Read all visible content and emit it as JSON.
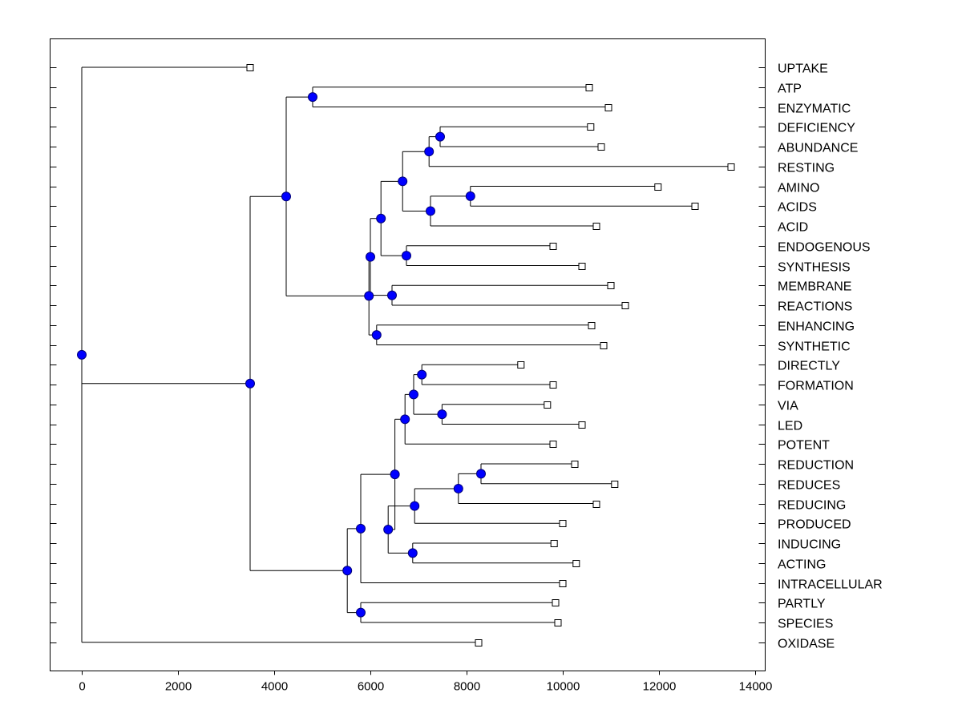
{
  "chart_data": {
    "type": "dendrogram",
    "title": "",
    "xlabel": "",
    "ylabel": "",
    "xlim": [
      -650,
      14250
    ],
    "x_ticks": [
      "0",
      "2000",
      "4000",
      "6000",
      "8000",
      "10000",
      "12000",
      "14000"
    ],
    "x_tick_values": [
      0,
      2000,
      4000,
      6000,
      8000,
      10000,
      12000,
      14000
    ],
    "leaves": [
      "UPTAKE",
      "ATP",
      "ENZYMATIC",
      "DEFICIENCY",
      "ABUNDANCE",
      "RESTING",
      "AMINO",
      "ACIDS",
      "ACID",
      "ENDOGENOUS",
      "SYNTHESIS",
      "MEMBRANE",
      "REACTIONS",
      "ENHANCING",
      "SYNTHETIC",
      "DIRECTLY",
      "FORMATION",
      "VIA",
      "LED",
      "POTENT",
      "REDUCTION",
      "REDUCES",
      "REDUCING",
      "PRODUCED",
      "INDUCING",
      "ACTING",
      "INTRACELLULAR",
      "PARTLY",
      "SPECIES",
      "OXIDASE"
    ],
    "leaf_values": [
      3500,
      10550,
      10950,
      10580,
      10800,
      13500,
      11980,
      12750,
      10700,
      9800,
      10400,
      11000,
      11300,
      10600,
      10850,
      9130,
      9800,
      9680,
      10400,
      9800,
      10250,
      11080,
      10700,
      10000,
      9820,
      10280,
      10000,
      9850,
      9900,
      8250
    ],
    "tree": {
      "h": 0,
      "c": [
        "UPTAKE",
        {
          "h": 3500,
          "c": [
            {
              "h": 4250,
              "c": [
                {
                  "h": 4800,
                  "c": [
                    "ATP",
                    "ENZYMATIC"
                  ]
                },
                {
                  "h": 5970,
                  "c": [
                    {
                      "h": 6000,
                      "c": [
                        {
                          "h": 6220,
                          "c": [
                            {
                              "h": 6670,
                              "c": [
                                {
                                  "h": 7220,
                                  "c": [
                                    {
                                      "h": 7450,
                                      "c": [
                                        "DEFICIENCY",
                                        "ABUNDANCE"
                                      ]
                                    },
                                    "RESTING"
                                  ]
                                },
                                {
                                  "h": 7250,
                                  "c": [
                                    {
                                      "h": 8080,
                                      "c": [
                                        "AMINO",
                                        "ACIDS"
                                      ]
                                    },
                                    "ACID"
                                  ]
                                }
                              ]
                            },
                            {
                              "h": 6750,
                              "c": [
                                "ENDOGENOUS",
                                "SYNTHESIS"
                              ]
                            }
                          ]
                        },
                        {
                          "h": 6450,
                          "c": [
                            "MEMBRANE",
                            "REACTIONS"
                          ]
                        }
                      ]
                    },
                    {
                      "h": 6130,
                      "c": [
                        "ENHANCING",
                        "SYNTHETIC"
                      ]
                    }
                  ]
                }
              ]
            },
            {
              "h": 5520,
              "c": [
                {
                  "h": 5800,
                  "c": [
                    {
                      "h": 6510,
                      "c": [
                        {
                          "h": 6720,
                          "c": [
                            {
                              "h": 6900,
                              "c": [
                                {
                                  "h": 7070,
                                  "c": [
                                    "DIRECTLY",
                                    "FORMATION"
                                  ]
                                },
                                {
                                  "h": 7490,
                                  "c": [
                                    "VIA",
                                    "LED"
                                  ]
                                }
                              ]
                            },
                            "POTENT"
                          ]
                        },
                        {
                          "h": 6370,
                          "c": [
                            {
                              "h": 6920,
                              "c": [
                                {
                                  "h": 7830,
                                  "c": [
                                    {
                                      "h": 8300,
                                      "c": [
                                        "REDUCTION",
                                        "REDUCES"
                                      ]
                                    },
                                    "REDUCING"
                                  ]
                                },
                                "PRODUCED"
                              ]
                            },
                            {
                              "h": 6880,
                              "c": [
                                "INDUCING",
                                "ACTING"
                              ]
                            }
                          ]
                        }
                      ]
                    },
                    "INTRACELLULAR"
                  ]
                },
                {
                  "h": 5800,
                  "c": [
                    "PARTLY",
                    "SPECIES"
                  ]
                }
              ]
            }
          ]
        },
        "OXIDASE"
      ]
    }
  }
}
